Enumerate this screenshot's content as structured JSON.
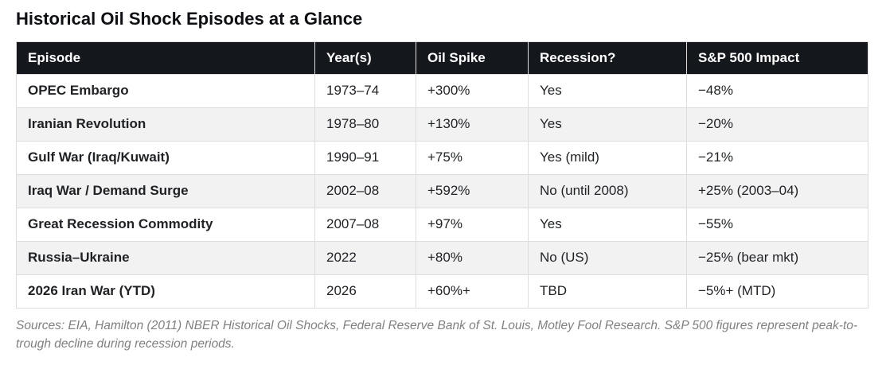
{
  "title": "Historical Oil Shock Episodes at a Glance",
  "table": {
    "columns": [
      "Episode",
      "Year(s)",
      "Oil Spike",
      "Recession?",
      "S&P 500 Impact"
    ],
    "rows": [
      {
        "episode": "OPEC Embargo",
        "years": "1973–74",
        "oil_spike": "+300%",
        "recession": "Yes",
        "recession_negative": true,
        "sp500_impact": "−48%",
        "sp500_negative": true
      },
      {
        "episode": "Iranian Revolution",
        "years": "1978–80",
        "oil_spike": "+130%",
        "recession": "Yes",
        "recession_negative": true,
        "sp500_impact": "−20%",
        "sp500_negative": true
      },
      {
        "episode": "Gulf War (Iraq/Kuwait)",
        "years": "1990–91",
        "oil_spike": "+75%",
        "recession": "Yes (mild)",
        "recession_negative": true,
        "sp500_impact": "−21%",
        "sp500_negative": true
      },
      {
        "episode": "Iraq War / Demand Surge",
        "years": "2002–08",
        "oil_spike": "+592%",
        "recession": "No (until 2008)",
        "recession_negative": false,
        "sp500_impact": "+25% (2003–04)",
        "sp500_negative": false
      },
      {
        "episode": "Great Recession Commodity",
        "years": "2007–08",
        "oil_spike": "+97%",
        "recession": "Yes",
        "recession_negative": true,
        "sp500_impact": "−55%",
        "sp500_negative": true
      },
      {
        "episode": "Russia–Ukraine",
        "years": "2022",
        "oil_spike": "+80%",
        "recession": "No (US)",
        "recession_negative": false,
        "sp500_impact": "−25% (bear mkt)",
        "sp500_negative": true
      },
      {
        "episode": "2026 Iran War (YTD)",
        "years": "2026",
        "oil_spike": "+60%+",
        "recession": "TBD",
        "recession_negative": false,
        "sp500_impact": "−5%+ (MTD)",
        "sp500_negative": true
      }
    ]
  },
  "footnote": "Sources: EIA, Hamilton (2011) NBER Historical Oil Shocks, Federal Reserve Bank of St. Louis, Motley Fool Research. S&P 500 figures represent peak-to-trough decline during recession periods.",
  "colors": {
    "header_bg": "#14171c",
    "border": "#dddddd",
    "row_alt_bg": "#f2f2f2",
    "body_text": "#1f2124",
    "negative_text": "#c0392b",
    "footnote_text": "#808080"
  }
}
